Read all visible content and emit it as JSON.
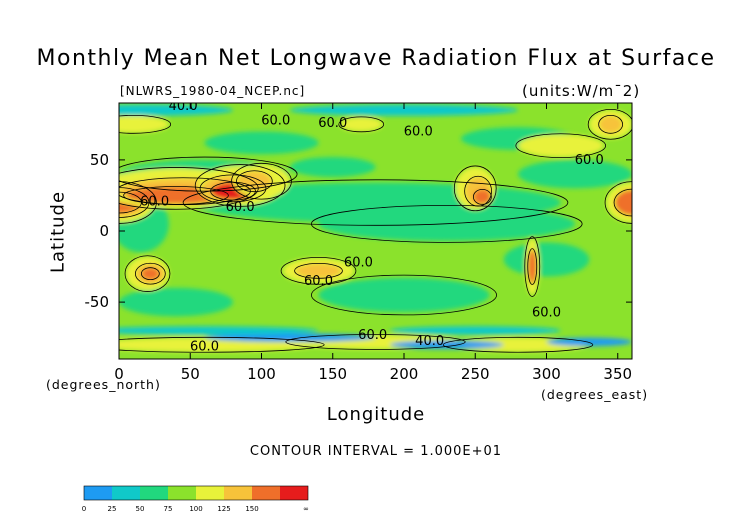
{
  "chart_data": {
    "type": "heatmap",
    "title": "Monthly Mean Net Longwave Radiation Flux at Surface",
    "subtitle": "[NLWRS_1980-04_NCEP.nc]",
    "units": "(units:W/m¯2)",
    "xlabel": "Longitude",
    "ylabel": "Latitude",
    "x_units_label": "(degrees_east)",
    "y_units_label": "(degrees_north)",
    "xlim": [
      0,
      360
    ],
    "ylim": [
      -90,
      90
    ],
    "x_ticks": [
      0,
      50,
      100,
      150,
      200,
      250,
      300,
      350
    ],
    "y_ticks": [
      50,
      0,
      -50
    ],
    "contour_interval": "CONTOUR INTERVAL = 1.000E+01",
    "contour_labels": [
      {
        "text": "40.0",
        "lon": 45,
        "lat": 85
      },
      {
        "text": "60.0",
        "lon": 110,
        "lat": 75
      },
      {
        "text": "60.0",
        "lon": 150,
        "lat": 73
      },
      {
        "text": "60.0",
        "lon": 210,
        "lat": 67
      },
      {
        "text": "60.0",
        "lon": 330,
        "lat": 47
      },
      {
        "text": "60.0",
        "lon": 25,
        "lat": 18
      },
      {
        "text": "60.0",
        "lon": 85,
        "lat": 14
      },
      {
        "text": "60.0",
        "lon": 168,
        "lat": -25
      },
      {
        "text": "60.0",
        "lon": 140,
        "lat": -38
      },
      {
        "text": "60.0",
        "lon": 300,
        "lat": -60
      },
      {
        "text": "60.0",
        "lon": 178,
        "lat": -76
      },
      {
        "text": "40.0",
        "lon": 218,
        "lat": -80
      },
      {
        "text": "60.0",
        "lon": 60,
        "lat": -84
      }
    ],
    "colorbar": {
      "tick_labels": [
        "0",
        "25",
        "50",
        "75",
        "100",
        "125",
        "150",
        "∞"
      ],
      "colors": [
        "#1e9bf2",
        "#10c9c9",
        "#21d87e",
        "#8be22c",
        "#e8f23a",
        "#f7c33a",
        "#ef6f2a",
        "#e61c1c"
      ]
    }
  }
}
